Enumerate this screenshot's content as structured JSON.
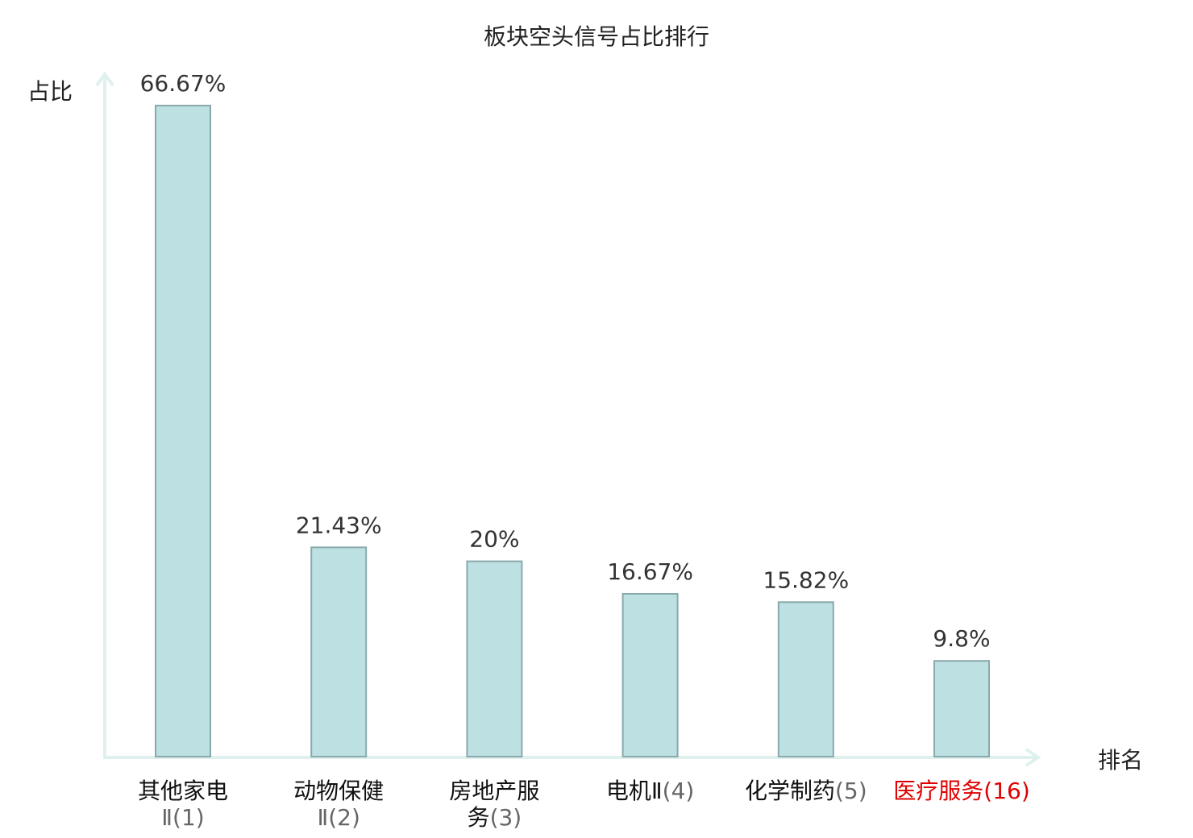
{
  "chart_data": {
    "type": "bar",
    "title": "板块空头信号占比排行",
    "ylabel": "占比",
    "xlabel": "排名",
    "categories": [
      "其他家电Ⅱ",
      "动物保健Ⅱ",
      "房地产服务",
      "电机Ⅱ",
      "化学制药",
      "医疗服务"
    ],
    "category_labels": [
      {
        "name_line1": "其他家电",
        "name_line2": "Ⅱ",
        "rank": "(1)",
        "highlight": false
      },
      {
        "name_line1": "动物保健",
        "name_line2": "Ⅱ",
        "rank": "(2)",
        "highlight": false
      },
      {
        "name_line1": "房地产服",
        "name_line2": "务",
        "rank": "(3)",
        "highlight": false
      },
      {
        "name_line1": "电机Ⅱ",
        "name_line2": "",
        "rank": "(4)",
        "highlight": false
      },
      {
        "name_line1": "化学制药",
        "name_line2": "",
        "rank": "(5)",
        "highlight": false
      },
      {
        "name_line1": "医疗服务",
        "name_line2": "",
        "rank": "(16)",
        "highlight": true
      }
    ],
    "values": [
      66.67,
      21.43,
      20,
      16.67,
      15.82,
      9.8
    ],
    "value_labels": [
      "66.67%",
      "21.43%",
      "20%",
      "16.67%",
      "15.82%",
      "9.8%"
    ],
    "ylim": [
      0,
      66.67
    ],
    "grid": false,
    "colors": {
      "bar_fill": "#bde0e3",
      "bar_stroke": "#8aa9ab",
      "axis": "#dff1ef",
      "highlight": "#e00000"
    }
  }
}
